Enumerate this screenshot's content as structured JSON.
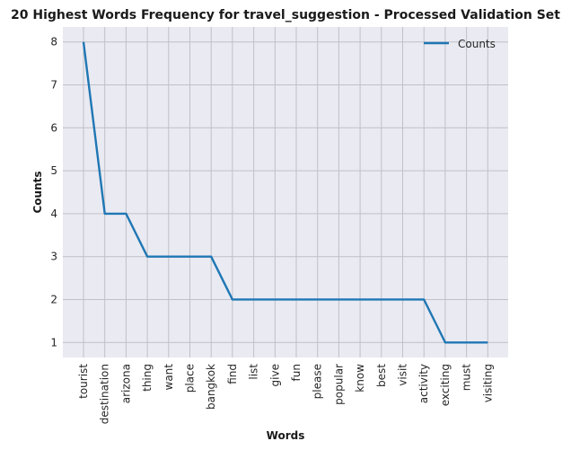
{
  "chart_data": {
    "type": "line",
    "title": "20 Highest Words Frequency for travel_suggestion - Processed Validation Set",
    "xlabel": "Words",
    "ylabel": "Counts",
    "categories": [
      "tourist",
      "destination",
      "arizona",
      "thing",
      "want",
      "place",
      "bangkok",
      "find",
      "list",
      "give",
      "fun",
      "please",
      "popular",
      "know",
      "best",
      "visit",
      "activity",
      "exciting",
      "must",
      "visiting"
    ],
    "series": [
      {
        "name": "Counts",
        "values": [
          8,
          4,
          4,
          3,
          3,
          3,
          3,
          2,
          2,
          2,
          2,
          2,
          2,
          2,
          2,
          2,
          2,
          1,
          1,
          1
        ]
      }
    ],
    "yticks": [
      "1",
      "2",
      "3",
      "4",
      "5",
      "6",
      "7",
      "8"
    ],
    "ylim": [
      0.65,
      8.35
    ],
    "grid": true,
    "legend": "upper right",
    "colors": {
      "background": "#eaeaf2",
      "line": "#1f77b4"
    }
  }
}
